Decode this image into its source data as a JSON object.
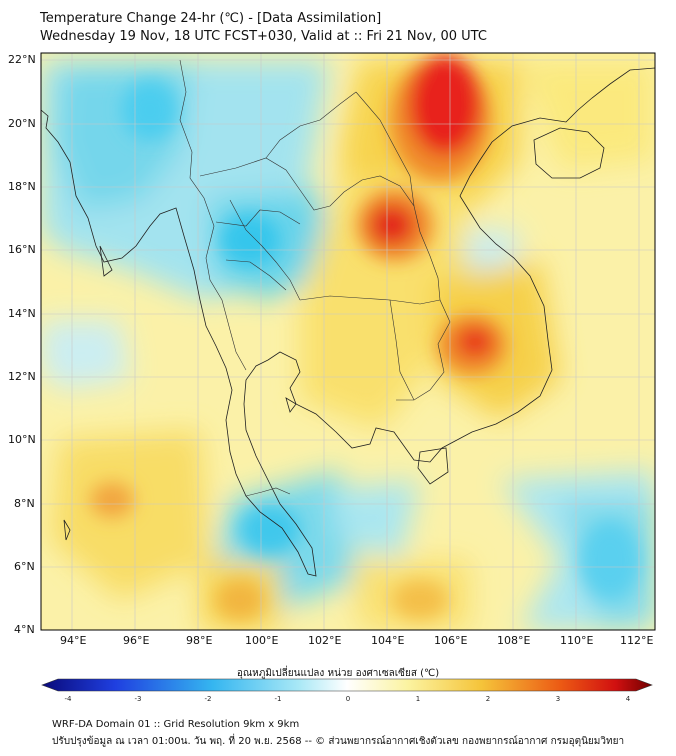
{
  "header": {
    "title_line1": "Temperature Change 24-hr (℃) - [Data Assimilation]",
    "title_line2": "Wednesday 19 Nov, 18 UTC FCST+030, Valid at :: Fri 21 Nov, 00 UTC"
  },
  "map": {
    "lon_range": [
      93,
      112.5
    ],
    "lat_range": [
      4,
      22.2
    ],
    "lat_ticks": [
      "22°N",
      "20°N",
      "18°N",
      "16°N",
      "14°N",
      "12°N",
      "10°N",
      "8°N",
      "6°N",
      "4°N"
    ],
    "lat_values": [
      22,
      20,
      18,
      16,
      14,
      12,
      10,
      8,
      6,
      4
    ],
    "lon_ticks": [
      "94°E",
      "96°E",
      "98°E",
      "100°E",
      "102°E",
      "104°E",
      "106°E",
      "108°E",
      "110°E",
      "112°E"
    ],
    "lon_values": [
      94,
      96,
      98,
      100,
      102,
      104,
      106,
      108,
      110,
      112
    ],
    "hotspots": [
      {
        "lon": 105.6,
        "lat": 20.8,
        "value": 3.4
      },
      {
        "lon": 104.0,
        "lat": 16.8,
        "value": 3.1
      },
      {
        "lon": 106.8,
        "lat": 12.9,
        "value": 3.0
      },
      {
        "lon": 95.3,
        "lat": 8.1,
        "value": 2.2
      },
      {
        "lon": 99.5,
        "lat": 4.8,
        "value": 1.8
      }
    ],
    "coldspots": [
      {
        "lon": 96.0,
        "lat": 19.0,
        "value": -1.6
      },
      {
        "lon": 100.2,
        "lat": 16.0,
        "value": -1.7
      },
      {
        "lon": 99.8,
        "lat": 6.8,
        "value": -1.7
      },
      {
        "lon": 109.0,
        "lat": 5.6,
        "value": -1.4
      },
      {
        "lon": 94.2,
        "lat": 21.4,
        "value": -1.5
      }
    ]
  },
  "colorbar": {
    "title": "อุณหภูมิเปลี่ยนแปลง หน่วย องศาเซลเซียส (℃)",
    "tick_labels": [
      "-4",
      "-3",
      "-2",
      "-1",
      "0",
      "1",
      "2",
      "3",
      "4"
    ],
    "tick_values": [
      -4,
      -3,
      -2,
      -1,
      0,
      1,
      2,
      3,
      4
    ],
    "min": -4,
    "max": 4
  },
  "footer": {
    "line1": "WRF-DA Domain 01 :: Grid Resolution 9km x 9km",
    "line2": "ปรับปรุงข้อมูล ณ เวลา 01:00น. วัน พฤ. ที่ 20 พ.ย. 2568 -- © ส่วนพยากรณ์อากาศเชิงตัวเลข กองพยากรณ์อากาศ กรมอุตุนิยมวิทยา"
  },
  "colors": {
    "warm_yellow": "#f7ea6a",
    "hot_red": "#e8201a",
    "cool_cyan": "#62d3ef",
    "land_line": "#222222"
  }
}
